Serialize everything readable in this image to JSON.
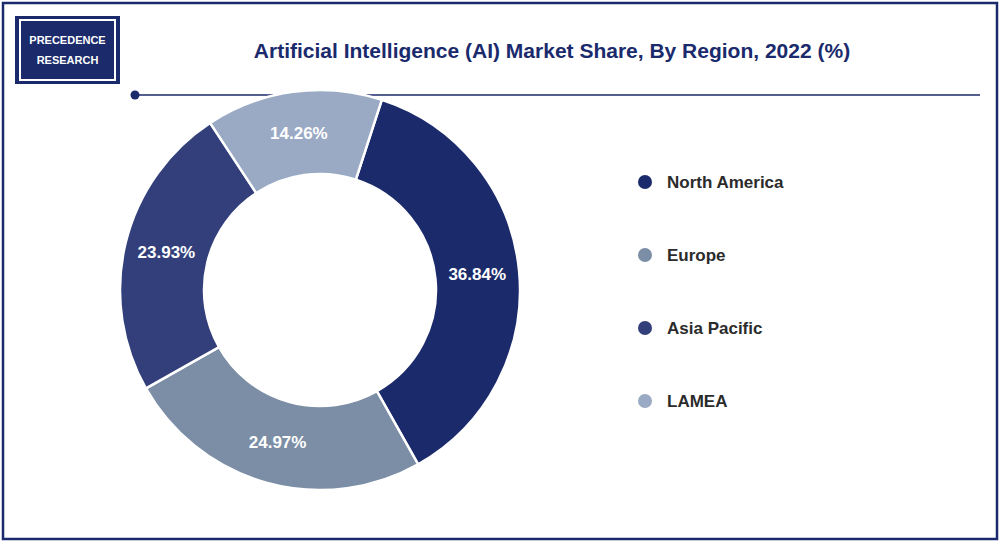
{
  "chart_data": {
    "type": "donut",
    "title": "Artificial Intelligence (AI) Market Share, By Region, 2022 (%)",
    "categories": [
      "North America",
      "Europe",
      "Asia Pacific",
      "LAMEA"
    ],
    "values": [
      36.84,
      24.97,
      23.93,
      14.26
    ],
    "value_labels": [
      "36.84%",
      "24.97%",
      "23.93%",
      "14.26%"
    ],
    "colors": [
      "#1b2a6b",
      "#7b8ea6",
      "#323f7a",
      "#9aaac5"
    ],
    "data_labels": true,
    "legend": "right",
    "annotations": [
      "PRECEDENCE",
      "RESEARCH"
    ]
  }
}
